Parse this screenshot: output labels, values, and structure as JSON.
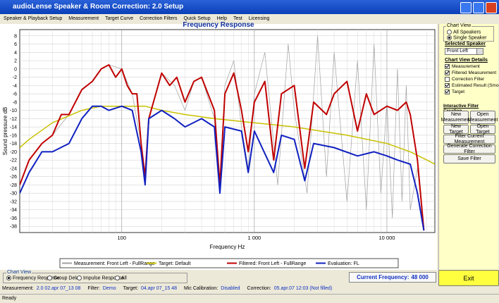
{
  "window": {
    "title": "audioLense Speaker & Room Correction: 2.0 Setup"
  },
  "menu": [
    "Speaker & Playback Setup",
    "Measurement",
    "Target Curve",
    "Correction Filters",
    "Quick Setup",
    "Help",
    "Test",
    "Licensing"
  ],
  "chart_data": {
    "type": "line",
    "title": "Frequency Response",
    "xlabel": "Frequency Hz",
    "ylabel": "Sound pressure dB",
    "xscale": "log",
    "xlim": [
      17,
      23000
    ],
    "ylim": [
      -39.5,
      9.5
    ],
    "xticks": [
      100,
      {
        "value": 1000,
        "label": "1 000"
      },
      {
        "value": 10000,
        "label": "10 000"
      }
    ],
    "xminor": [
      20,
      30,
      40,
      50,
      60,
      70,
      80,
      90,
      200,
      300,
      400,
      500,
      600,
      700,
      800,
      900,
      2000,
      3000,
      4000,
      5000,
      6000,
      7000,
      8000,
      9000,
      20000
    ],
    "yticks": [
      8,
      6,
      4,
      2,
      0,
      -2,
      -4,
      -6,
      -8,
      -10,
      -12,
      -14,
      -16,
      -18,
      -20,
      -22,
      -24,
      -26,
      -28,
      -30,
      -32,
      -34,
      -36,
      -38
    ],
    "grid": true,
    "series": [
      {
        "name": "Measurement: Front Left - FullRange",
        "color": "#a0a0a0",
        "width": 0.7,
        "x": [
          17,
          20,
          25,
          30,
          40,
          50,
          60,
          70,
          80,
          100,
          120,
          140,
          150,
          160,
          200,
          250,
          300,
          350,
          400,
          500,
          550,
          600,
          700,
          800,
          900,
          1000,
          1200,
          1500,
          1800,
          2000,
          2500,
          3000,
          3500,
          4000,
          5000,
          6000,
          7000,
          8000,
          9000,
          10000,
          11000,
          12000,
          13000,
          14000,
          15000,
          17000,
          19000
        ],
        "values": [
          -28,
          -22,
          -18,
          -16,
          -11,
          -5,
          -3,
          0,
          1,
          0,
          -6,
          -18,
          -26,
          -12,
          -1,
          -4,
          -10,
          -3,
          -2,
          -12,
          -30,
          -4,
          2,
          -14,
          -24,
          -6,
          4,
          -28,
          6,
          -10,
          -30,
          8,
          -26,
          4,
          -32,
          2,
          -34,
          6,
          -30,
          -8,
          -36,
          0,
          -32,
          -4,
          -34,
          -24,
          -39
        ]
      },
      {
        "name": "Target: Default",
        "color": "#c8c000",
        "width": 1.5,
        "x": [
          17,
          20,
          30,
          50,
          70,
          100,
          150,
          200,
          300,
          500,
          1000,
          2000,
          5000,
          10000,
          15000,
          20000,
          23000
        ],
        "values": [
          -19,
          -17,
          -13,
          -10,
          -9,
          -9,
          -9,
          -10,
          -11,
          -12,
          -13,
          -14,
          -16,
          -18,
          -20,
          -22,
          -23
        ]
      },
      {
        "name": "Filtered: Front Left - FullRange",
        "color": "#c00000",
        "width": 2,
        "x": [
          17,
          20,
          25,
          30,
          35,
          40,
          50,
          60,
          70,
          80,
          90,
          100,
          110,
          120,
          130,
          140,
          150,
          160,
          200,
          230,
          260,
          300,
          350,
          400,
          500,
          550,
          600,
          700,
          800,
          900,
          1000,
          1200,
          1400,
          1600,
          2000,
          2400,
          2800,
          3500,
          4000,
          5000,
          6000,
          7000,
          8000,
          10000,
          12000,
          14000,
          15000,
          17000,
          19000
        ],
        "values": [
          -28,
          -22,
          -18,
          -16,
          -11,
          -11,
          -5,
          -3,
          0,
          1,
          -2,
          0,
          -4,
          -6,
          -6,
          -18,
          -26,
          -12,
          -1,
          -4,
          -2,
          -8,
          -3,
          -2,
          -10,
          -28,
          -6,
          -1,
          -10,
          -20,
          -8,
          -3,
          -22,
          -6,
          -4,
          -24,
          -8,
          -11,
          -6,
          -3,
          -15,
          -6,
          -11,
          -9,
          -10,
          -8,
          -11,
          -22,
          -39
        ]
      },
      {
        "name": "Evaluation: FL",
        "color": "#1020c0",
        "width": 2,
        "x": [
          17,
          20,
          25,
          30,
          40,
          50,
          60,
          70,
          80,
          100,
          120,
          140,
          150,
          160,
          200,
          250,
          300,
          400,
          500,
          550,
          600,
          800,
          900,
          1000,
          1400,
          1600,
          2000,
          2400,
          2800,
          4000,
          6000,
          8000,
          10000,
          12000,
          15000,
          17000,
          19000
        ],
        "values": [
          -30,
          -25,
          -20,
          -20,
          -18,
          -12,
          -9,
          -9,
          -10,
          -9,
          -10,
          -20,
          -28,
          -12,
          -10,
          -12,
          -14,
          -12,
          -14,
          -30,
          -14,
          -15,
          -25,
          -15,
          -25,
          -16,
          -17,
          -27,
          -18,
          -19,
          -21,
          -20,
          -21,
          -22,
          -23,
          -30,
          -39
        ]
      }
    ]
  },
  "right_panel": {
    "chart_view": {
      "label": "Chart View",
      "options": [
        {
          "label": "All Speakers",
          "selected": false
        },
        {
          "label": "Single Speaker",
          "selected": true
        }
      ]
    },
    "selected_speaker": {
      "label": "Selected Speaker",
      "value": "Front Left"
    },
    "details": {
      "label": "Chart View Details",
      "items": [
        {
          "label": "Measurement",
          "checked": true
        },
        {
          "label": "Filtered Measurement",
          "checked": true
        },
        {
          "label": "Correction Filter",
          "checked": false
        },
        {
          "label": "Estimated Result (Smoothed)",
          "checked": true
        },
        {
          "label": "Target",
          "checked": true
        }
      ]
    },
    "filter_creation": {
      "label": "Interactive Filter Creation",
      "buttons": [
        "New Measurement",
        "Open Measurement",
        "New Target",
        "Open Target",
        "Filter Current Measurement",
        "Generate Correction Filter",
        "Save Filter"
      ]
    },
    "exit": "Exit"
  },
  "bottom": {
    "chart_view": {
      "label": "Chart View",
      "options": [
        {
          "label": "Frequency Response",
          "selected": true
        },
        {
          "label": "Group Delay",
          "selected": false
        },
        {
          "label": "Impulse Response",
          "selected": false
        },
        {
          "label": "All",
          "selected": false
        }
      ]
    },
    "current_frequency": {
      "label": "Current Frequency:",
      "value": "48 000"
    }
  },
  "info": [
    {
      "label": "Measurement:",
      "value": "2.0 02.apr 07_13 08"
    },
    {
      "label": "Filter:",
      "value": "Demo"
    },
    {
      "label": "Target:",
      "value": "04.apr 07_15 48"
    },
    {
      "label": "Mic Calibration:",
      "value": "Disabled"
    },
    {
      "label": "Correction:",
      "value": "05.apr.07 12:03 (Not filled)"
    }
  ],
  "status": "Ready"
}
